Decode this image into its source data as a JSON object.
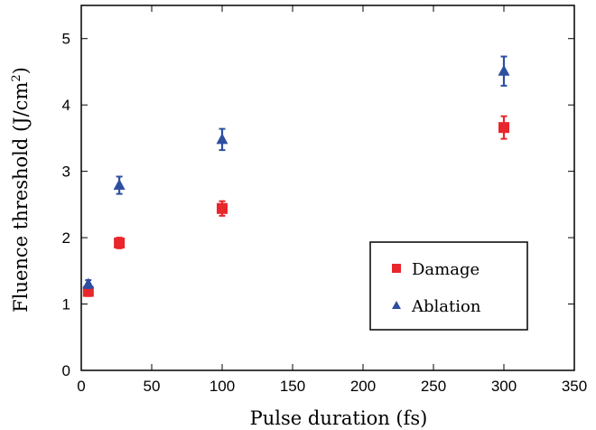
{
  "chart_data": {
    "type": "scatter",
    "title": "",
    "xlabel": "Pulse duration (fs)",
    "ylabel_main": "Fluence threshold (J/cm",
    "ylabel_sup": "2",
    "ylabel_close": ")",
    "xlim": [
      0,
      350
    ],
    "ylim": [
      0,
      5.5
    ],
    "xticks": [
      0,
      50,
      100,
      150,
      200,
      250,
      300,
      350
    ],
    "yticks": [
      0,
      1,
      2,
      3,
      4,
      5
    ],
    "grid": false,
    "legend_position": "bottom-right",
    "series": [
      {
        "name": "Damage",
        "marker": "square",
        "color": "#e8262c",
        "points": [
          {
            "x": 5,
            "y": 1.19,
            "err": 0.07
          },
          {
            "x": 27,
            "y": 1.92,
            "err": 0.08
          },
          {
            "x": 100,
            "y": 2.44,
            "err": 0.11
          },
          {
            "x": 300,
            "y": 3.66,
            "err": 0.17
          }
        ]
      },
      {
        "name": "Ablation",
        "marker": "triangle",
        "color": "#2d4fa0",
        "points": [
          {
            "x": 5,
            "y": 1.3,
            "err": 0.06
          },
          {
            "x": 27,
            "y": 2.79,
            "err": 0.13
          },
          {
            "x": 100,
            "y": 3.48,
            "err": 0.16
          },
          {
            "x": 300,
            "y": 4.51,
            "err": 0.22
          }
        ]
      }
    ]
  }
}
